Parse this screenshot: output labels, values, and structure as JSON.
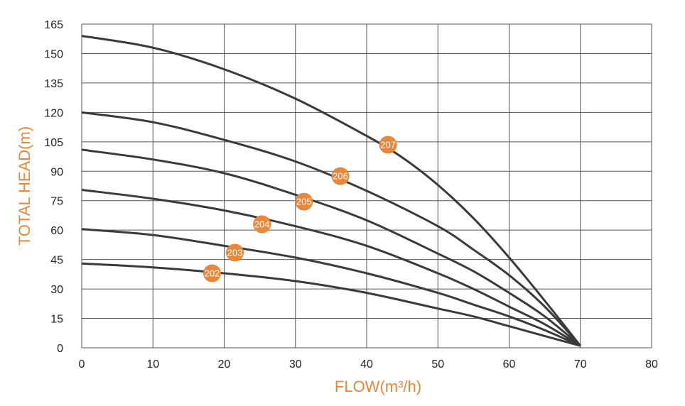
{
  "chart_data": {
    "type": "line",
    "xlabel": "FLOW(m³/h)",
    "ylabel": "TOTAL HEAD(m)",
    "xlim": [
      0,
      80
    ],
    "ylim": [
      0,
      165
    ],
    "xticks": [
      0,
      10,
      20,
      30,
      40,
      50,
      60,
      70,
      80
    ],
    "yticks": [
      0,
      15,
      30,
      45,
      60,
      75,
      90,
      105,
      120,
      135,
      150,
      165
    ],
    "grid": true,
    "colors": {
      "curve": "#3a3a3a",
      "marker": "#e8873a",
      "accent": "#e8873a",
      "grid": "#555555"
    },
    "series": [
      {
        "name": "207",
        "marker": [
          43,
          103.5
        ],
        "x": [
          0,
          10,
          20,
          30,
          40,
          45,
          50,
          55,
          60,
          65,
          70
        ],
        "y": [
          159,
          153,
          142,
          127,
          108,
          97,
          83,
          66,
          46,
          24,
          1
        ]
      },
      {
        "name": "206",
        "marker": [
          36.3,
          87.5
        ],
        "x": [
          0,
          10,
          20,
          30,
          40,
          50,
          55,
          60,
          65,
          70
        ],
        "y": [
          120,
          115,
          106,
          95,
          80,
          62,
          50,
          37,
          21,
          1
        ]
      },
      {
        "name": "205",
        "marker": [
          31.2,
          74.5
        ],
        "x": [
          0,
          10,
          20,
          30,
          40,
          50,
          55,
          60,
          65,
          70
        ],
        "y": [
          101,
          96,
          89,
          78,
          65,
          48,
          39,
          28,
          16,
          1
        ]
      },
      {
        "name": "204",
        "marker": [
          25.3,
          63
        ],
        "x": [
          0,
          10,
          20,
          30,
          40,
          50,
          55,
          60,
          65,
          70
        ],
        "y": [
          80.5,
          76,
          70,
          62,
          52,
          38,
          30,
          21,
          12,
          1
        ]
      },
      {
        "name": "203",
        "marker": [
          21.5,
          48.5
        ],
        "x": [
          0,
          10,
          20,
          30,
          40,
          50,
          55,
          60,
          65,
          70
        ],
        "y": [
          60.5,
          57.5,
          52,
          46,
          38,
          28,
          22,
          16,
          9,
          1
        ]
      },
      {
        "name": "202",
        "marker": [
          18.3,
          38
        ],
        "x": [
          0,
          10,
          20,
          30,
          40,
          50,
          55,
          60,
          65,
          70
        ],
        "y": [
          43,
          41,
          38,
          34,
          28,
          20,
          16,
          11,
          6,
          1
        ]
      }
    ]
  }
}
